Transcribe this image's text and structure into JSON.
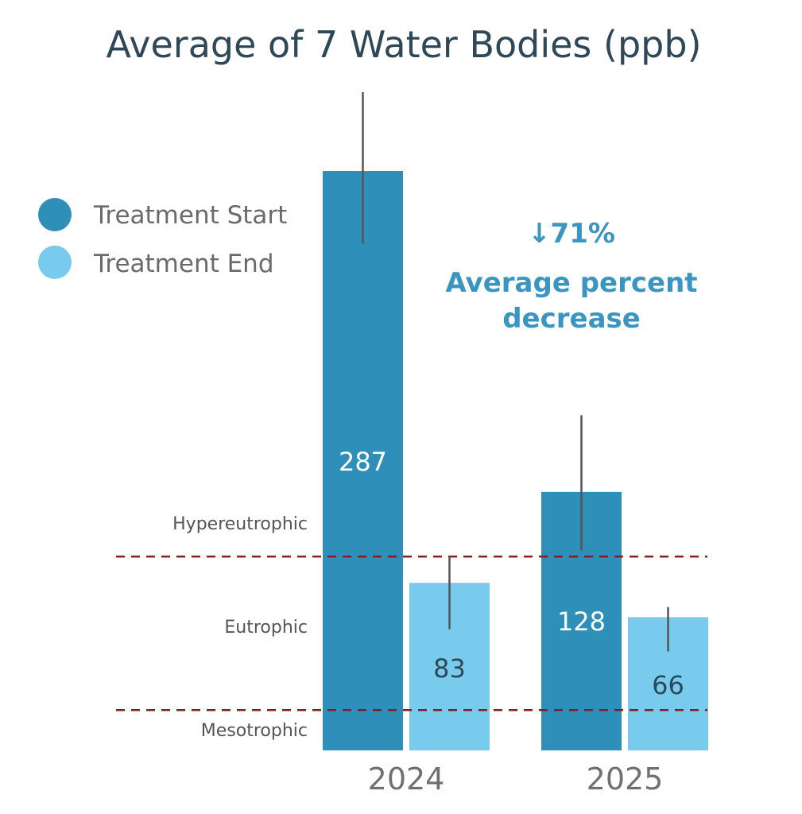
{
  "chart_data": {
    "type": "bar",
    "title": "Average of 7 Water Bodies (ppb)",
    "categories": [
      "2024",
      "2025"
    ],
    "series": [
      {
        "name": "Treatment Start",
        "color": "#2e8fb8",
        "values": [
          287,
          128
        ],
        "error_low": [
          251,
          99
        ],
        "error_high": [
          326,
          166
        ]
      },
      {
        "name": "Treatment End",
        "color": "#79cbee",
        "values": [
          83,
          66
        ],
        "error_low": [
          60,
          49
        ],
        "error_high": [
          96,
          71
        ]
      }
    ],
    "value_labels": [
      "287",
      "128",
      "83",
      "66"
    ],
    "ylim": [
      0,
      320
    ],
    "xlabel": "",
    "ylabel": "",
    "legend_position": "left",
    "grid": false,
    "thresholds": [
      {
        "label": "Hypereutrophic",
        "value": 96
      },
      {
        "label": "Eutrophic",
        "value": 20
      }
    ],
    "zone_labels": [
      "Hypereutrophic",
      "Eutrophic",
      "Mesotrophic"
    ],
    "threshold_color": "#8b1a1a",
    "error_bar_color": "#555555",
    "annotation": {
      "line1": "↓71%",
      "line2": "Average percent",
      "line3": "decrease",
      "color": "#3a96c0"
    }
  }
}
